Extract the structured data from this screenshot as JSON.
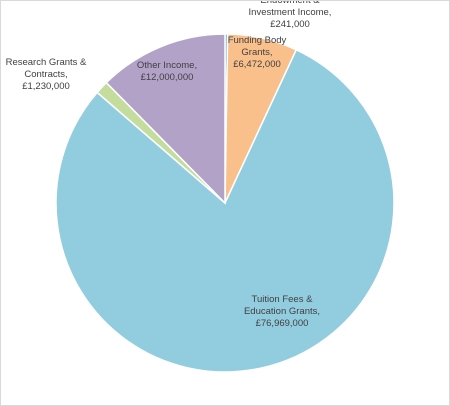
{
  "chart_data": {
    "type": "pie",
    "title": "",
    "start_angle_deg": 0,
    "direction": "clockwise",
    "slices": [
      {
        "name": "Endowment & Investment Income",
        "value": 241000,
        "display_value": "£241,000",
        "label_lines": [
          "Endowment &",
          "Investment Income,",
          "£241,000"
        ],
        "color": "#6fa8c6"
      },
      {
        "name": "Funding Body Grants",
        "value": 6472000,
        "display_value": "£6,472,000",
        "label_lines": [
          "Funding Body",
          "Grants,",
          "£6,472,000"
        ],
        "color": "#f9c08c"
      },
      {
        "name": "Tuition Fees & Education Grants",
        "value": 76969000,
        "display_value": "£76,969,000",
        "label_lines": [
          "Tuition Fees &",
          "Education Grants,",
          "£76,969,000"
        ],
        "color": "#92cddf"
      },
      {
        "name": "Research Grants & Contracts",
        "value": 1230000,
        "display_value": "£1,230,000",
        "label_lines": [
          "Research Grants &",
          "Contracts,",
          "£1,230,000"
        ],
        "color": "#c4dd9e"
      },
      {
        "name": "Other Income",
        "value": 12000000,
        "display_value": "£12,000,000",
        "label_lines": [
          "Other Income,",
          "£12,000,000"
        ],
        "color": "#b3a2c8"
      }
    ],
    "legend": "none"
  }
}
